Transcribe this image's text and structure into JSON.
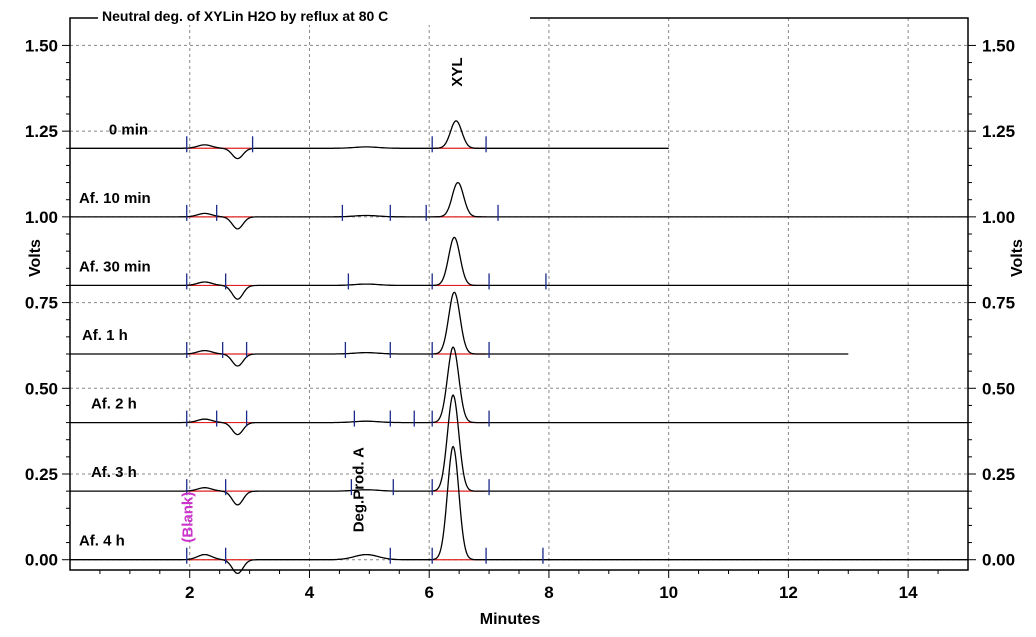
{
  "chart_data": {
    "type": "line",
    "title": "Neutral deg. of XYLin H2O by reflux at 80 C",
    "xlabel": "Minutes",
    "ylabel_left": "Volts",
    "ylabel_right": "Volts",
    "xlim": [
      0,
      15
    ],
    "ylim": [
      -0.03,
      1.58
    ],
    "x_ticks": [
      "2",
      "4",
      "6",
      "8",
      "10",
      "12",
      "14"
    ],
    "y_ticks": [
      "0.00",
      "0.25",
      "0.50",
      "0.75",
      "1.00",
      "1.25",
      "1.50"
    ],
    "grid": true,
    "annotations": [
      {
        "text": "XYL",
        "x": 6.55,
        "y": 1.38,
        "color": "#000000"
      },
      {
        "text": "Deg.Prod. A",
        "x": 4.9,
        "y": 0.08,
        "color": "#000000"
      },
      {
        "text": "(Blank)",
        "x": 2.05,
        "y": 0.05,
        "color": "#cc33cc"
      }
    ],
    "series": [
      {
        "name": "0 min",
        "baseline": 1.2,
        "end": 10.0,
        "label_x": 0.65,
        "peak": {
          "x": 6.45,
          "h": 0.08
        },
        "dip": {
          "x": 2.8,
          "h": -0.03
        },
        "bump": 0.01,
        "markers": [
          1.95,
          3.05,
          6.05,
          6.95
        ]
      },
      {
        "name": "Af. 10 min",
        "baseline": 1.0,
        "end": 15.0,
        "label_x": 0.15,
        "peak": {
          "x": 6.48,
          "h": 0.1
        },
        "dip": {
          "x": 2.8,
          "h": -0.035
        },
        "bump": 0.01,
        "markers": [
          1.95,
          2.45,
          4.55,
          5.35,
          5.95,
          7.15
        ]
      },
      {
        "name": "Af. 30 min",
        "baseline": 0.8,
        "end": 15.0,
        "label_x": 0.15,
        "peak": {
          "x": 6.42,
          "h": 0.14
        },
        "dip": {
          "x": 2.8,
          "h": -0.04
        },
        "bump": 0.01,
        "markers": [
          1.95,
          2.6,
          4.65,
          6.05,
          7.0,
          7.95
        ]
      },
      {
        "name": "Af. 1 h",
        "baseline": 0.6,
        "end": 13.0,
        "label_x": 0.2,
        "peak": {
          "x": 6.42,
          "h": 0.18
        },
        "dip": {
          "x": 2.8,
          "h": -0.035
        },
        "bump": 0.01,
        "markers": [
          1.95,
          2.55,
          2.95,
          4.6,
          5.35,
          6.05,
          7.0
        ]
      },
      {
        "name": "Af. 2 h",
        "baseline": 0.4,
        "end": 15.0,
        "label_x": 0.35,
        "peak": {
          "x": 6.4,
          "h": 0.22
        },
        "dip": {
          "x": 2.8,
          "h": -0.035
        },
        "bump": 0.01,
        "markers": [
          1.95,
          2.45,
          2.95,
          4.75,
          5.35,
          5.75,
          6.05,
          7.0
        ]
      },
      {
        "name": "Af. 3 h",
        "baseline": 0.2,
        "end": 15.0,
        "label_x": 0.35,
        "peak": {
          "x": 6.4,
          "h": 0.28
        },
        "dip": {
          "x": 2.8,
          "h": -0.04
        },
        "bump": 0.01,
        "markers": [
          1.95,
          2.6,
          4.7,
          5.4,
          6.05,
          7.0
        ]
      },
      {
        "name": "Af. 4 h",
        "baseline": 0.0,
        "end": 15.0,
        "label_x": 0.15,
        "peak": {
          "x": 6.4,
          "h": 0.33
        },
        "dip": {
          "x": 2.8,
          "h": -0.04
        },
        "bump": 0.015,
        "markers": [
          1.95,
          2.6,
          5.35,
          6.05,
          6.95,
          7.9
        ]
      }
    ]
  }
}
